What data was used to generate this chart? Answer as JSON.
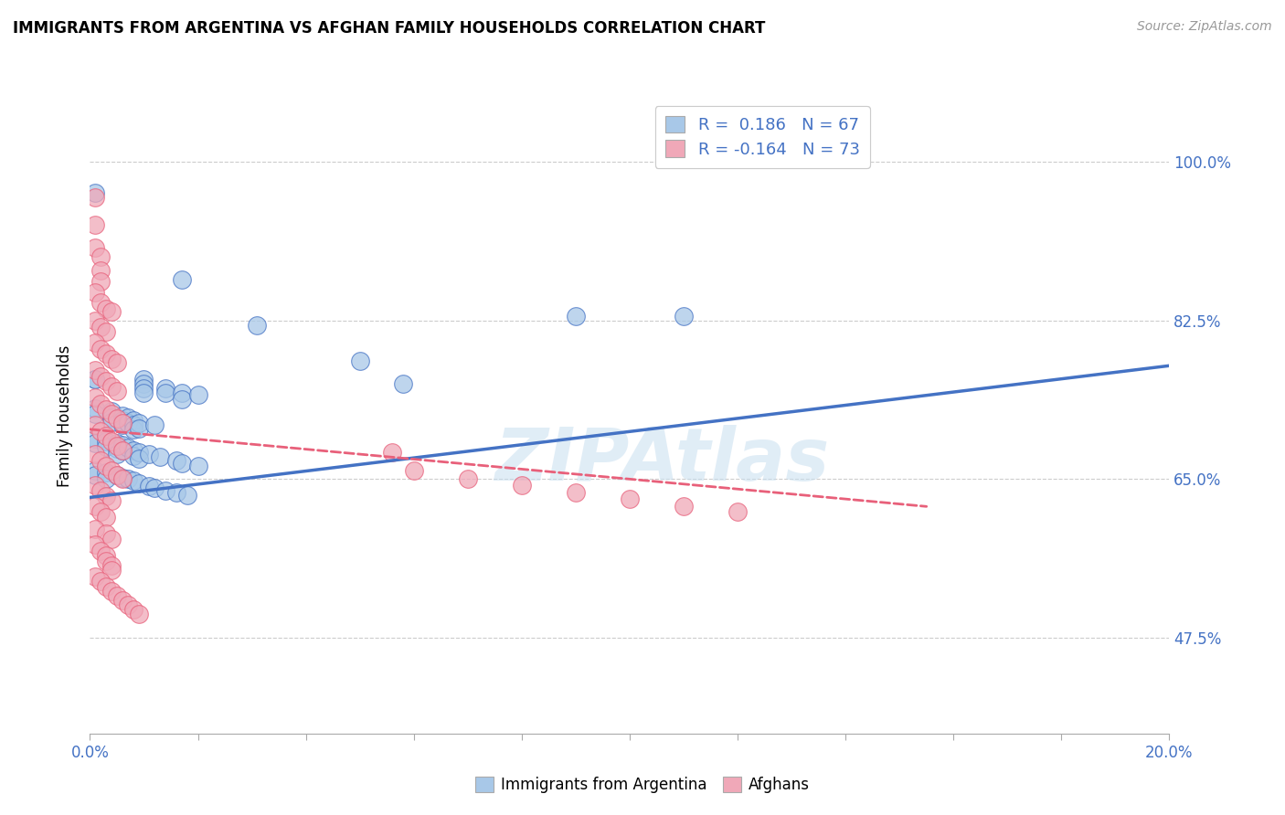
{
  "title": "IMMIGRANTS FROM ARGENTINA VS AFGHAN FAMILY HOUSEHOLDS CORRELATION CHART",
  "source": "Source: ZipAtlas.com",
  "ylabel": "Family Households",
  "ytick_labels": [
    "47.5%",
    "65.0%",
    "82.5%",
    "100.0%"
  ],
  "ytick_values": [
    0.475,
    0.65,
    0.825,
    1.0
  ],
  "xlim": [
    0.0,
    0.2
  ],
  "ylim": [
    0.37,
    1.07
  ],
  "color_argentina": "#a8c8e8",
  "color_afghan": "#f0a8b8",
  "line_color_argentina": "#4472c4",
  "line_color_afghan": "#e8607a",
  "watermark": "ZIPAtlas",
  "argentina_points": [
    [
      0.001,
      0.965
    ],
    [
      0.017,
      0.87
    ],
    [
      0.031,
      0.82
    ],
    [
      0.05,
      0.78
    ],
    [
      0.058,
      0.755
    ],
    [
      0.09,
      0.83
    ],
    [
      0.11,
      0.83
    ],
    [
      0.001,
      0.76
    ],
    [
      0.001,
      0.76
    ],
    [
      0.01,
      0.76
    ],
    [
      0.01,
      0.755
    ],
    [
      0.01,
      0.75
    ],
    [
      0.01,
      0.745
    ],
    [
      0.014,
      0.75
    ],
    [
      0.014,
      0.745
    ],
    [
      0.017,
      0.745
    ],
    [
      0.017,
      0.738
    ],
    [
      0.02,
      0.743
    ],
    [
      0.001,
      0.728
    ],
    [
      0.001,
      0.722
    ],
    [
      0.004,
      0.725
    ],
    [
      0.004,
      0.718
    ],
    [
      0.004,
      0.713
    ],
    [
      0.006,
      0.72
    ],
    [
      0.006,
      0.715
    ],
    [
      0.006,
      0.71
    ],
    [
      0.007,
      0.718
    ],
    [
      0.007,
      0.712
    ],
    [
      0.008,
      0.715
    ],
    [
      0.008,
      0.71
    ],
    [
      0.008,
      0.705
    ],
    [
      0.009,
      0.712
    ],
    [
      0.009,
      0.706
    ],
    [
      0.012,
      0.71
    ],
    [
      0.001,
      0.695
    ],
    [
      0.001,
      0.69
    ],
    [
      0.003,
      0.692
    ],
    [
      0.003,
      0.686
    ],
    [
      0.005,
      0.69
    ],
    [
      0.005,
      0.684
    ],
    [
      0.005,
      0.678
    ],
    [
      0.006,
      0.688
    ],
    [
      0.006,
      0.682
    ],
    [
      0.007,
      0.685
    ],
    [
      0.008,
      0.682
    ],
    [
      0.008,
      0.676
    ],
    [
      0.009,
      0.68
    ],
    [
      0.009,
      0.673
    ],
    [
      0.011,
      0.678
    ],
    [
      0.013,
      0.675
    ],
    [
      0.016,
      0.671
    ],
    [
      0.017,
      0.668
    ],
    [
      0.02,
      0.665
    ],
    [
      0.001,
      0.66
    ],
    [
      0.001,
      0.655
    ],
    [
      0.003,
      0.658
    ],
    [
      0.003,
      0.651
    ],
    [
      0.005,
      0.655
    ],
    [
      0.006,
      0.652
    ],
    [
      0.007,
      0.65
    ],
    [
      0.008,
      0.648
    ],
    [
      0.009,
      0.645
    ],
    [
      0.011,
      0.642
    ],
    [
      0.012,
      0.64
    ],
    [
      0.014,
      0.637
    ],
    [
      0.016,
      0.635
    ],
    [
      0.018,
      0.632
    ]
  ],
  "afghan_points": [
    [
      0.001,
      0.96
    ],
    [
      0.001,
      0.93
    ],
    [
      0.001,
      0.905
    ],
    [
      0.002,
      0.895
    ],
    [
      0.002,
      0.88
    ],
    [
      0.002,
      0.868
    ],
    [
      0.001,
      0.856
    ],
    [
      0.002,
      0.845
    ],
    [
      0.003,
      0.838
    ],
    [
      0.004,
      0.835
    ],
    [
      0.001,
      0.825
    ],
    [
      0.002,
      0.818
    ],
    [
      0.003,
      0.812
    ],
    [
      0.001,
      0.8
    ],
    [
      0.002,
      0.793
    ],
    [
      0.003,
      0.788
    ],
    [
      0.004,
      0.782
    ],
    [
      0.005,
      0.778
    ],
    [
      0.001,
      0.77
    ],
    [
      0.002,
      0.763
    ],
    [
      0.003,
      0.758
    ],
    [
      0.004,
      0.752
    ],
    [
      0.005,
      0.747
    ],
    [
      0.001,
      0.74
    ],
    [
      0.002,
      0.733
    ],
    [
      0.003,
      0.727
    ],
    [
      0.004,
      0.722
    ],
    [
      0.005,
      0.717
    ],
    [
      0.006,
      0.712
    ],
    [
      0.001,
      0.71
    ],
    [
      0.002,
      0.703
    ],
    [
      0.003,
      0.698
    ],
    [
      0.004,
      0.692
    ],
    [
      0.005,
      0.687
    ],
    [
      0.006,
      0.682
    ],
    [
      0.001,
      0.678
    ],
    [
      0.002,
      0.671
    ],
    [
      0.003,
      0.665
    ],
    [
      0.004,
      0.66
    ],
    [
      0.005,
      0.655
    ],
    [
      0.006,
      0.65
    ],
    [
      0.001,
      0.643
    ],
    [
      0.002,
      0.637
    ],
    [
      0.003,
      0.631
    ],
    [
      0.004,
      0.626
    ],
    [
      0.001,
      0.62
    ],
    [
      0.002,
      0.614
    ],
    [
      0.003,
      0.608
    ],
    [
      0.056,
      0.68
    ],
    [
      0.06,
      0.66
    ],
    [
      0.07,
      0.65
    ],
    [
      0.08,
      0.643
    ],
    [
      0.09,
      0.635
    ],
    [
      0.1,
      0.628
    ],
    [
      0.11,
      0.62
    ],
    [
      0.12,
      0.614
    ],
    [
      0.001,
      0.595
    ],
    [
      0.003,
      0.59
    ],
    [
      0.004,
      0.584
    ],
    [
      0.001,
      0.578
    ],
    [
      0.002,
      0.571
    ],
    [
      0.003,
      0.566
    ],
    [
      0.003,
      0.56
    ],
    [
      0.004,
      0.555
    ],
    [
      0.004,
      0.55
    ],
    [
      0.001,
      0.543
    ],
    [
      0.002,
      0.538
    ],
    [
      0.003,
      0.532
    ],
    [
      0.004,
      0.527
    ],
    [
      0.005,
      0.522
    ],
    [
      0.006,
      0.517
    ],
    [
      0.007,
      0.512
    ],
    [
      0.008,
      0.507
    ],
    [
      0.009,
      0.502
    ]
  ],
  "argentina_line": {
    "x0": 0.0,
    "y0": 0.63,
    "x1": 0.2,
    "y1": 0.775
  },
  "afghan_line": {
    "x0": 0.0,
    "y0": 0.705,
    "x1": 0.155,
    "y1": 0.62
  }
}
